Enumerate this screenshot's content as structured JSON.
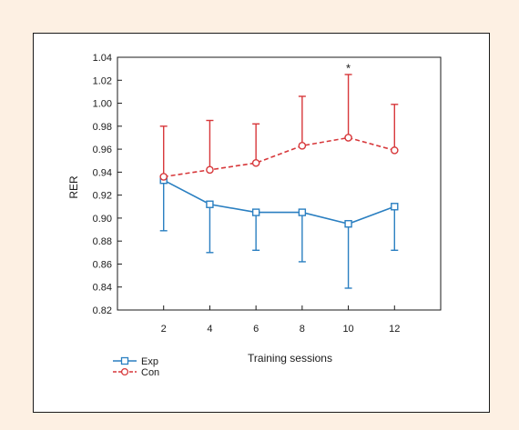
{
  "chart_data": {
    "type": "line",
    "xlabel": "Training sessions",
    "ylabel": "RER",
    "x": [
      2,
      4,
      6,
      8,
      10,
      12
    ],
    "xlim": [
      0,
      14
    ],
    "ylim": [
      0.82,
      1.04
    ],
    "yticks": [
      "0.82",
      "0.84",
      "0.86",
      "0.88",
      "0.90",
      "0.92",
      "0.94",
      "0.96",
      "0.98",
      "1.00",
      "1.02",
      "1.04"
    ],
    "xticks": [
      "2",
      "4",
      "6",
      "8",
      "10",
      "12"
    ],
    "grid": false,
    "legend_position": "bottom-left",
    "series": [
      {
        "name": "Exp",
        "color": "#2a7fc1",
        "line_style": "solid",
        "marker": "square",
        "values": [
          0.933,
          0.912,
          0.905,
          0.905,
          0.895,
          0.91
        ],
        "error_lower": [
          0.889,
          0.87,
          0.872,
          0.862,
          0.839,
          0.872
        ],
        "error_direction": "down"
      },
      {
        "name": "Con",
        "color": "#d7373a",
        "line_style": "dashed",
        "marker": "circle",
        "values": [
          0.936,
          0.942,
          0.948,
          0.963,
          0.97,
          0.959
        ],
        "error_upper": [
          0.98,
          0.985,
          0.982,
          1.006,
          1.025,
          0.999
        ],
        "error_direction": "up"
      }
    ],
    "annotations": [
      {
        "x": 10,
        "y": 1.03,
        "text": "*"
      }
    ]
  }
}
